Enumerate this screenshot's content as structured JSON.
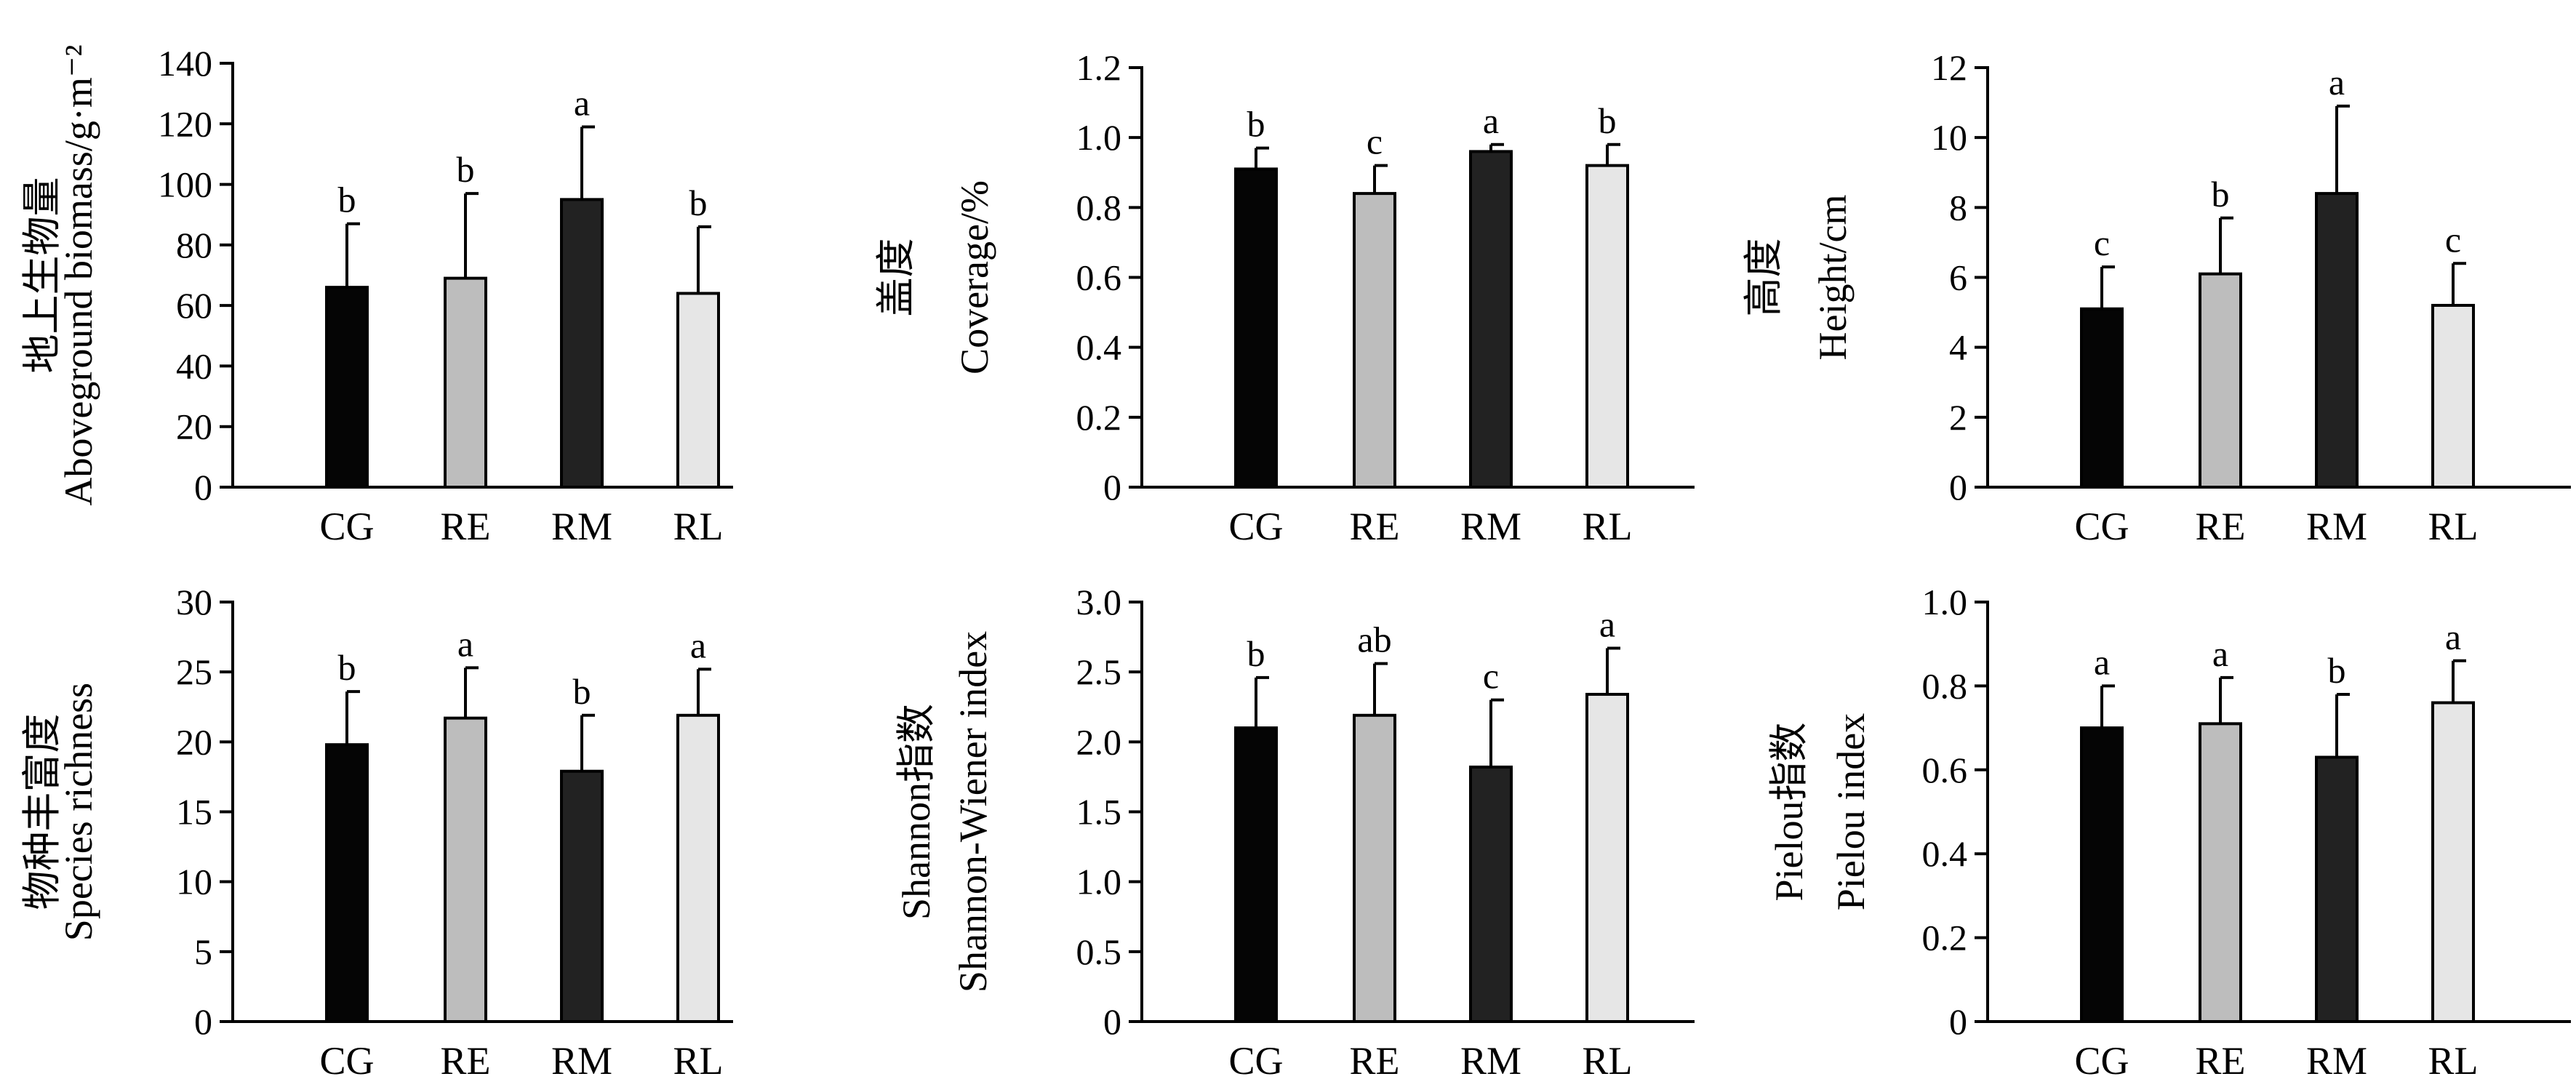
{
  "chart_data": [
    {
      "type": "bar",
      "categories": [
        "CG",
        "RE",
        "RM",
        "RL"
      ],
      "values": [
        66,
        69,
        95,
        64
      ],
      "errors": [
        21,
        28,
        24,
        22
      ],
      "significance": [
        "b",
        "b",
        "a",
        "b"
      ],
      "ylabel_cn": "地上生物量",
      "ylabel": "Aboveground biomass/g·m⁻²",
      "ylim": [
        0,
        140
      ],
      "yticks": [
        "0",
        "20",
        "40",
        "60",
        "80",
        "100",
        "120",
        "140"
      ]
    },
    {
      "type": "bar",
      "categories": [
        "CG",
        "RE",
        "RM",
        "RL"
      ],
      "values": [
        0.91,
        0.84,
        0.96,
        0.92
      ],
      "errors": [
        0.06,
        0.08,
        0.02,
        0.06
      ],
      "significance": [
        "b",
        "c",
        "a",
        "b"
      ],
      "ylabel_cn": "盖度",
      "ylabel": "Coverage/%",
      "ylim": [
        0,
        1.2
      ],
      "yticks": [
        "0",
        "0.2",
        "0.4",
        "0.6",
        "0.8",
        "1.0",
        "1.2"
      ]
    },
    {
      "type": "bar",
      "categories": [
        "CG",
        "RE",
        "RM",
        "RL"
      ],
      "values": [
        5.1,
        6.1,
        8.4,
        5.2
      ],
      "errors": [
        1.2,
        1.6,
        2.5,
        1.2
      ],
      "significance": [
        "c",
        "b",
        "a",
        "c"
      ],
      "ylabel_cn": "高度",
      "ylabel": "Height/cm",
      "ylim": [
        0,
        12
      ],
      "yticks": [
        "0",
        "2",
        "4",
        "6",
        "8",
        "10",
        "12"
      ]
    },
    {
      "type": "bar",
      "categories": [
        "CG",
        "RE",
        "RM",
        "RL"
      ],
      "values": [
        19.8,
        21.7,
        17.9,
        21.9
      ],
      "errors": [
        3.8,
        3.6,
        4.0,
        3.3
      ],
      "significance": [
        "b",
        "a",
        "b",
        "a"
      ],
      "ylabel_cn": "物种丰富度",
      "ylabel": "Species richness",
      "ylim": [
        0,
        30
      ],
      "yticks": [
        "0",
        "5",
        "10",
        "15",
        "20",
        "25",
        "30"
      ]
    },
    {
      "type": "bar",
      "categories": [
        "CG",
        "RE",
        "RM",
        "RL"
      ],
      "values": [
        2.1,
        2.19,
        1.82,
        2.34
      ],
      "errors": [
        0.36,
        0.37,
        0.48,
        0.33
      ],
      "significance": [
        "b",
        "ab",
        "c",
        "a"
      ],
      "ylabel_cn": "Shannon指数",
      "ylabel": "Shannon-Wiener index",
      "ylim": [
        0,
        3.0
      ],
      "yticks": [
        "0",
        "0.5",
        "1.0",
        "1.5",
        "2.0",
        "2.5",
        "3.0"
      ]
    },
    {
      "type": "bar",
      "categories": [
        "CG",
        "RE",
        "RM",
        "RL"
      ],
      "values": [
        0.7,
        0.71,
        0.63,
        0.76
      ],
      "errors": [
        0.1,
        0.11,
        0.15,
        0.1
      ],
      "significance": [
        "a",
        "a",
        "b",
        "a"
      ],
      "ylabel_cn": "Pielou指数",
      "ylabel": "Pielou index",
      "ylim": [
        0,
        1.0
      ],
      "yticks": [
        "0",
        "0.2",
        "0.4",
        "0.6",
        "0.8",
        "1.0"
      ]
    }
  ],
  "bar_colors": [
    "#050505",
    "#bdbdbd",
    "#222222",
    "#e6e6e6"
  ]
}
